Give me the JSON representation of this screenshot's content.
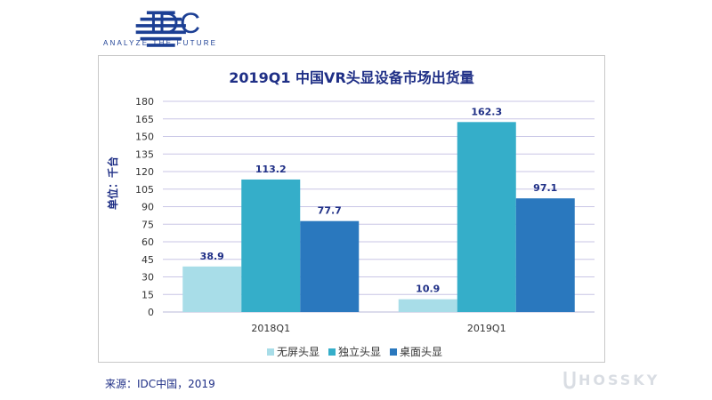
{
  "brand": {
    "logo_text": "IDC",
    "tagline": "ANALYZE THE FUTURE"
  },
  "chart_data": {
    "type": "bar",
    "title": "2019Q1 中国VR头显设备市场出货量",
    "ylabel": "单位：千台",
    "xlabel": "",
    "categories": [
      "2018Q1",
      "2019Q1"
    ],
    "series": [
      {
        "name": "无屏头显",
        "values": [
          38.9,
          10.9
        ],
        "color": "#a8dde8"
      },
      {
        "name": "独立头显",
        "values": [
          113.2,
          162.3
        ],
        "color": "#35aec9"
      },
      {
        "name": "桌面头显",
        "values": [
          77.7,
          97.1
        ],
        "color": "#2a78be"
      }
    ],
    "ylim": [
      0,
      180
    ],
    "yticks": [
      "0",
      "15",
      "30",
      "45",
      "60",
      "75",
      "90",
      "105",
      "120",
      "135",
      "150",
      "165",
      "180"
    ],
    "grid": true,
    "legend_position": "bottom"
  },
  "source_text": "来源：IDC中国，2019",
  "watermark_text": "HOSSKY",
  "colors": {
    "title": "#1f2f86",
    "grid": "#c9c6e6",
    "label": "#1f2f86"
  }
}
